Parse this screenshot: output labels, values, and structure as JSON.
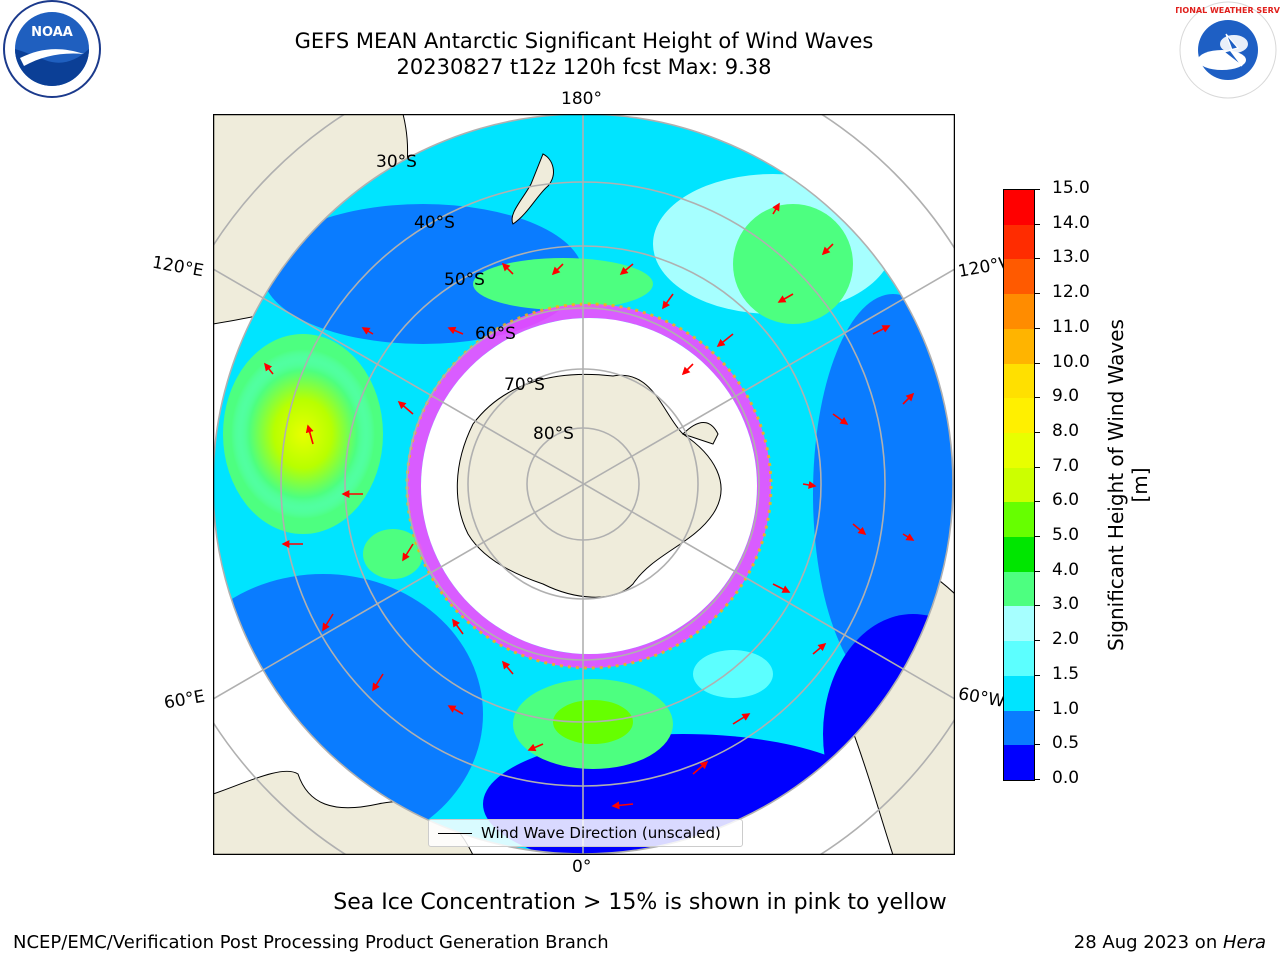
{
  "title": {
    "line1": "GEFS MEAN Antarctic Significant Height of Wind Waves",
    "line2": "20230827 t12z 120h fcst   Max: 9.38"
  },
  "logos": {
    "noara": "NOAA",
    "nws": "NATIONAL WEATHER SERVICE"
  },
  "map": {
    "longitude_labels": {
      "top": "180°",
      "bottom": "0°",
      "left_upper": "120°E",
      "left_lower": "60°E",
      "right_upper": "120°W",
      "right_lower": "60°W"
    },
    "latitude_labels": [
      "30°S",
      "40°S",
      "50°S",
      "60°S",
      "70°S",
      "80°S"
    ]
  },
  "legend": {
    "label": "Wind Wave Direction (unscaled)"
  },
  "colorbar": {
    "label": "Significant Height of Wind Waves [m]",
    "ticks": [
      "0.0",
      "0.5",
      "1.0",
      "1.5",
      "2.0",
      "3.0",
      "4.0",
      "5.0",
      "6.0",
      "7.0",
      "8.0",
      "9.0",
      "10.0",
      "11.0",
      "12.0",
      "13.0",
      "14.0",
      "15.0"
    ],
    "colors": [
      "#0000ff",
      "#0a7cff",
      "#00e4ff",
      "#5cffff",
      "#a6ffff",
      "#4dff80",
      "#00e600",
      "#66ff00",
      "#ccff00",
      "#e8ff00",
      "#fff000",
      "#ffe000",
      "#ffb400",
      "#ff8c00",
      "#ff5a00",
      "#ff2c00",
      "#ff0000"
    ]
  },
  "sea_ice_note": "Sea Ice Concentration > 15% is shown in pink to yellow",
  "footer": {
    "left": "NCEP/EMC/Verification Post Processing Product Generation Branch",
    "right_prefix": "28 Aug 2023 on ",
    "right_machine": "Hera"
  }
}
